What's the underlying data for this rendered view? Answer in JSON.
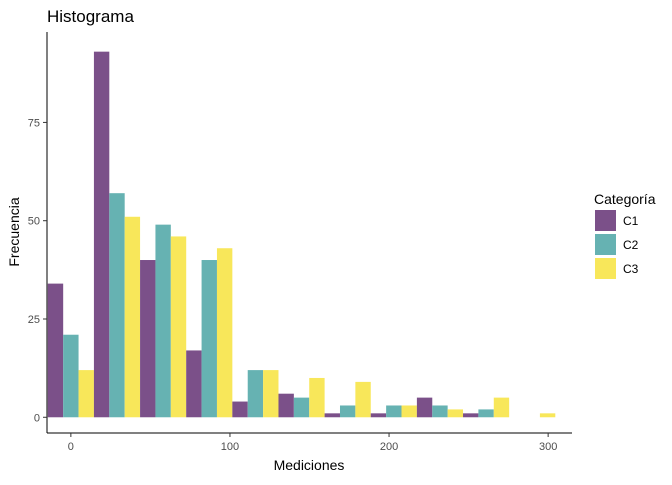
{
  "chart_data": {
    "type": "bar",
    "title": "Histograma",
    "xlabel": "Mediciones",
    "ylabel": "Frecuencia",
    "xlim": [
      -15,
      315
    ],
    "ylim": [
      -4,
      98
    ],
    "x_ticks": [
      0,
      100,
      200,
      300
    ],
    "y_ticks": [
      0,
      25,
      50,
      75
    ],
    "grid": false,
    "legend_title": "Categoría",
    "legend_position": "right",
    "bin_centers": [
      0,
      29,
      58,
      87,
      116,
      145,
      174,
      203,
      232,
      261,
      290
    ],
    "series": [
      {
        "name": "C1",
        "color": "#7b5089",
        "values": [
          34,
          93,
          40,
          17,
          4,
          6,
          1,
          1,
          5,
          1,
          0
        ]
      },
      {
        "name": "C2",
        "color": "#66b2b2",
        "values": [
          21,
          57,
          49,
          40,
          12,
          5,
          3,
          3,
          3,
          2,
          0
        ]
      },
      {
        "name": "C3",
        "color": "#f8e75a",
        "values": [
          12,
          51,
          46,
          43,
          12,
          10,
          9,
          3,
          2,
          5,
          1
        ]
      }
    ]
  }
}
